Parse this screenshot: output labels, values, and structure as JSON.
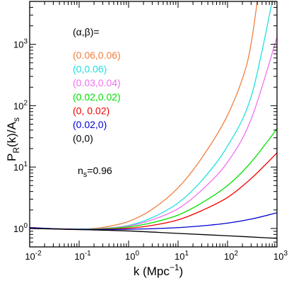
{
  "chart_data": {
    "type": "line",
    "x_scale": "log",
    "y_scale": "log",
    "xlim": [
      0.01,
      1000
    ],
    "ylim": [
      0.5,
      5000
    ],
    "x_ticks": [
      {
        "value": 0.01,
        "base": "10",
        "exp": "-2"
      },
      {
        "value": 0.1,
        "base": "10",
        "exp": "-1"
      },
      {
        "value": 1,
        "base": "10",
        "exp": "0"
      },
      {
        "value": 10,
        "base": "10",
        "exp": "1"
      },
      {
        "value": 100,
        "base": "10",
        "exp": "2"
      },
      {
        "value": 1000,
        "base": "10",
        "exp": "3"
      }
    ],
    "y_ticks": [
      {
        "value": 1,
        "base": "10",
        "exp": "0"
      },
      {
        "value": 10,
        "base": "10",
        "exp": "1"
      },
      {
        "value": 100,
        "base": "10",
        "exp": "2"
      },
      {
        "value": 1000,
        "base": "10",
        "exp": "3"
      }
    ],
    "xlabel": {
      "pre": "k (Mpc",
      "sup": "−1",
      "post": ")"
    },
    "ylabel": {
      "p": "P",
      "p_sub": "R",
      "mid": "(k)/A",
      "a_sub": "s"
    },
    "legend_title": "(α,β)=",
    "annotation": {
      "n": "n",
      "sub": "s",
      "value": "=0.96"
    },
    "series": [
      {
        "name": "(0.06,0.06)",
        "color": "#f08040",
        "x": [
          0.01,
          0.03,
          0.1,
          0.3,
          1,
          3,
          10,
          30,
          100,
          250,
          400
        ],
        "y": [
          1.04,
          0.99,
          0.97,
          1.04,
          1.3,
          2.05,
          4.6,
          14,
          70,
          500,
          5000
        ]
      },
      {
        "name": "(0,0.06)",
        "color": "#20e0e0",
        "x": [
          0.01,
          0.03,
          0.1,
          0.3,
          1,
          3,
          10,
          30,
          100,
          300,
          800
        ],
        "y": [
          1.02,
          0.99,
          0.97,
          1.0,
          1.12,
          1.5,
          2.6,
          6.0,
          22,
          140,
          5000
        ]
      },
      {
        "name": "(0.03,0.04)",
        "color": "#f070f0",
        "x": [
          0.01,
          0.03,
          0.1,
          0.3,
          1,
          3,
          10,
          30,
          100,
          300,
          1000
        ],
        "y": [
          1.03,
          0.99,
          0.97,
          1.0,
          1.1,
          1.38,
          2.1,
          4.2,
          12,
          60,
          1300
        ]
      },
      {
        "name": "(0.02,0.02)",
        "color": "#00e000",
        "x": [
          0.01,
          0.03,
          0.1,
          0.3,
          1,
          3,
          10,
          30,
          100,
          300,
          1000
        ],
        "y": [
          1.02,
          0.99,
          0.97,
          0.99,
          1.06,
          1.24,
          1.65,
          2.6,
          5.0,
          12,
          42
        ]
      },
      {
        "name": "(0, 0.02)",
        "color": "#f00000",
        "x": [
          0.01,
          0.03,
          0.1,
          0.3,
          1,
          3,
          10,
          30,
          100,
          300,
          1000
        ],
        "y": [
          1.0,
          0.98,
          0.96,
          0.97,
          1.01,
          1.12,
          1.38,
          1.95,
          3.2,
          6.5,
          17
        ]
      },
      {
        "name": "(0.02,0)",
        "color": "#0000d0",
        "x": [
          0.01,
          0.03,
          0.1,
          0.3,
          1,
          3,
          10,
          30,
          100,
          300,
          1000
        ],
        "y": [
          1.03,
          0.99,
          0.97,
          0.96,
          0.97,
          0.99,
          1.03,
          1.1,
          1.22,
          1.42,
          1.8
        ]
      },
      {
        "name": "(0,0)",
        "color": "#000000",
        "x": [
          0.01,
          0.1,
          1,
          10,
          100,
          1000
        ],
        "y": [
          1.0,
          0.96,
          0.91,
          0.83,
          0.76,
          0.69
        ]
      }
    ]
  }
}
